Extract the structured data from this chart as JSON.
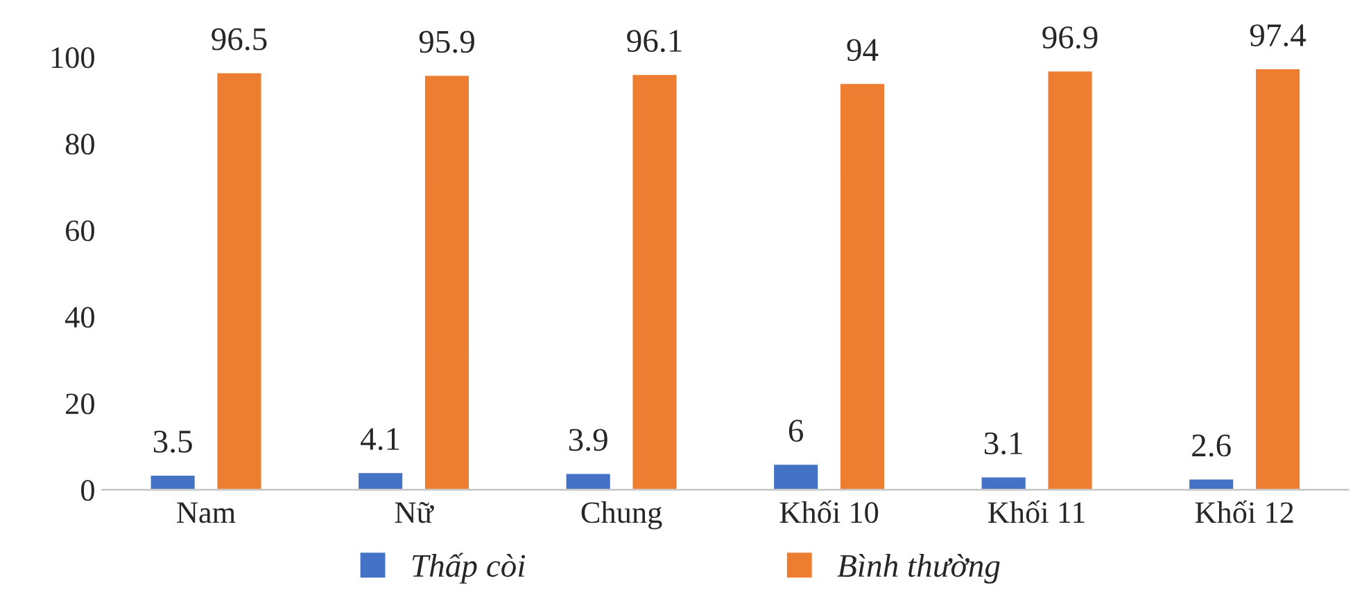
{
  "chart_data": {
    "type": "bar",
    "categories": [
      "Nam",
      "Nữ",
      "Chung",
      "Khối 10",
      "Khối 11",
      "Khối 12"
    ],
    "series": [
      {
        "name": "Thấp còi",
        "color": "#4472c4",
        "values": [
          3.5,
          4.1,
          3.9,
          6,
          3.1,
          2.6
        ]
      },
      {
        "name": "Bình thường",
        "color": "#ed7d31",
        "values": [
          96.5,
          95.9,
          96.1,
          94,
          96.9,
          97.4
        ]
      }
    ],
    "ylim": [
      0,
      100
    ],
    "yticks": [
      0,
      20,
      40,
      60,
      80,
      100
    ],
    "data_labels": true,
    "grid": false,
    "legend": "bottom"
  }
}
